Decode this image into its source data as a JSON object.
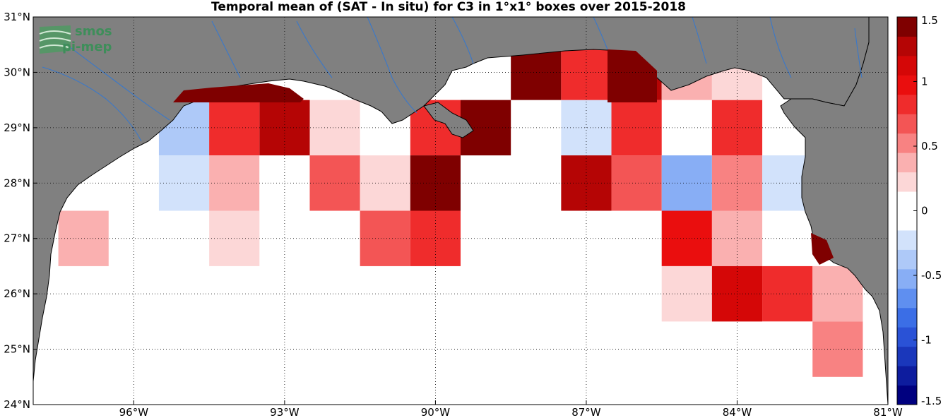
{
  "title": "Temporal mean of (SAT - In situ) for C3 in 1°x1° boxes over 2015-2018",
  "logo": {
    "line1": "smos",
    "line2": "pi-mep"
  },
  "map": {
    "lon_range": [
      -98.0,
      -81.0
    ],
    "lat_range": [
      24.0,
      31.0
    ],
    "lon_ticks": [
      -96,
      -93,
      -90,
      -87,
      -84,
      -81
    ],
    "lon_tick_labels": [
      "96°W",
      "93°W",
      "90°W",
      "87°W",
      "84°W",
      "81°W"
    ],
    "lat_ticks": [
      24,
      25,
      26,
      27,
      28,
      29,
      30,
      31
    ],
    "lat_tick_labels": [
      "24°N",
      "25°N",
      "26°N",
      "27°N",
      "28°N",
      "29°N",
      "30°N",
      "31°N"
    ],
    "land_color": "#808080",
    "sea_color": "#ffffff",
    "river_color": "#3a78c9",
    "cells": [
      {
        "lon": -95,
        "lat": 29,
        "v": -0.4
      },
      {
        "lon": -95,
        "lat": 28,
        "v": -0.2
      },
      {
        "lon": -94,
        "lat": 29,
        "v": 0.9
      },
      {
        "lon": -94,
        "lat": 28,
        "v": 0.4
      },
      {
        "lon": -93,
        "lat": 28,
        "v": -0.1
      },
      {
        "lon": -92,
        "lat": 29,
        "v": 0.2
      },
      {
        "lon": -92,
        "lat": 28,
        "v": 0.6
      },
      {
        "lon": -91,
        "lat": 28,
        "v": 0.2
      },
      {
        "lon": -90,
        "lat": 29,
        "v": 0.9
      },
      {
        "lon": -90,
        "lat": 28,
        "v": 1.4
      },
      {
        "lon": -89,
        "lat": 29,
        "v": 1.4
      },
      {
        "lon": -87,
        "lat": 29,
        "v": -0.2
      },
      {
        "lon": -87,
        "lat": 28,
        "v": 1.3
      },
      {
        "lon": -86,
        "lat": 29,
        "v": 0.9
      },
      {
        "lon": -86,
        "lat": 28,
        "v": 0.7
      },
      {
        "lon": -85,
        "lat": 28,
        "v": -0.5
      },
      {
        "lon": -84,
        "lat": 29,
        "v": 0.9
      },
      {
        "lon": -84,
        "lat": 28,
        "v": 0.5
      },
      {
        "lon": -83,
        "lat": 28,
        "v": -0.2
      },
      {
        "lon": -97,
        "lat": 27,
        "v": 0.4
      },
      {
        "lon": -94,
        "lat": 27,
        "v": 0.2
      },
      {
        "lon": -91,
        "lat": 27,
        "v": 0.6
      },
      {
        "lon": -90,
        "lat": 27,
        "v": 0.8
      },
      {
        "lon": -89,
        "lat": 27,
        "v": -0.1
      },
      {
        "lon": -89,
        "lat": 26,
        "v": -0.1
      },
      {
        "lon": -85,
        "lat": 27,
        "v": 1.0
      },
      {
        "lon": -84,
        "lat": 27,
        "v": 0.3
      },
      {
        "lon": -85,
        "lat": 26,
        "v": 0.2
      },
      {
        "lon": -84,
        "lat": 26,
        "v": 1.1
      },
      {
        "lon": -83,
        "lat": 26,
        "v": 0.9
      },
      {
        "lon": -82,
        "lat": 26,
        "v": 0.4
      },
      {
        "lon": -83,
        "lat": 25,
        "v": -0.1
      },
      {
        "lon": -82,
        "lat": 25,
        "v": 0.5
      },
      {
        "lon": -88,
        "lat": 30,
        "v": 1.4
      },
      {
        "lon": -87,
        "lat": 30,
        "v": 0.9
      },
      {
        "lon": -86,
        "lat": 30,
        "v": 1.2
      },
      {
        "lon": -85,
        "lat": 30,
        "v": 0.4
      },
      {
        "lon": -84,
        "lat": 30,
        "v": 0.2
      },
      {
        "lon": -93,
        "lat": 29,
        "v": 1.3
      }
    ]
  },
  "colorbar": {
    "vmin": -1.5,
    "vmax": 1.5,
    "tick_values": [
      1.5,
      1,
      0.5,
      0,
      -0.5,
      -1,
      -1.5
    ],
    "tick_labels": [
      "1.5",
      "1",
      "0.5",
      "0",
      "-0.5",
      "-1",
      "-1.5"
    ],
    "colors": [
      "#00007f",
      "#0d1c9e",
      "#1a37bb",
      "#2a52d6",
      "#3b6ee6",
      "#5f8ff0",
      "#88aef5",
      "#aec9f8",
      "#d2e2fb",
      "#ffffff",
      "#ffffff",
      "#fcd7d7",
      "#fab0b0",
      "#f88282",
      "#f35555",
      "#ef2c2c",
      "#ea0e0e",
      "#d50707",
      "#b50505",
      "#7f0000"
    ]
  }
}
